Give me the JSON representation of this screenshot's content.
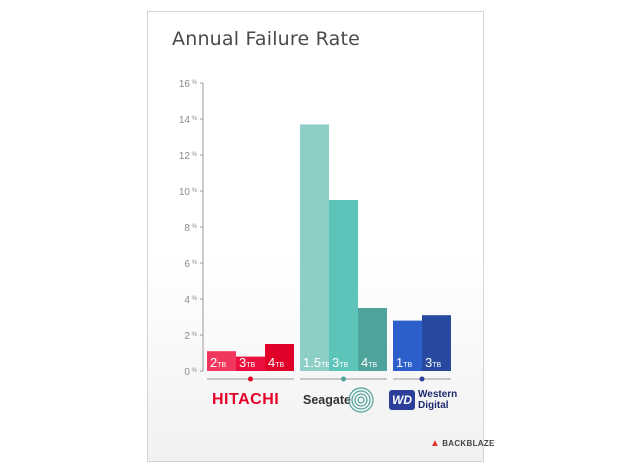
{
  "chart_data": {
    "type": "bar",
    "title": "Annual Failure Rate",
    "xlabel": "",
    "ylabel": "",
    "ylim": [
      0,
      16
    ],
    "ytick_labels": [
      "0 %",
      "2 %",
      "4 %",
      "6 %",
      "8 %",
      "10 %",
      "12 %",
      "14 %",
      "16 %"
    ],
    "ytick_values": [
      0,
      2,
      4,
      6,
      8,
      10,
      12,
      14,
      16
    ],
    "grid": false,
    "groups": [
      {
        "name": "HITACHI",
        "bars": [
          {
            "label_num": "2",
            "label_unit": "TB",
            "value": 1.1,
            "color": "#f2375e"
          },
          {
            "label_num": "3",
            "label_unit": "TB",
            "value": 0.8,
            "color": "#ea0f3e"
          },
          {
            "label_num": "4",
            "label_unit": "TB",
            "value": 1.5,
            "color": "#e00028"
          }
        ]
      },
      {
        "name": "Seagate",
        "bars": [
          {
            "label_num": "1.5",
            "label_unit": "TB",
            "value": 13.7,
            "color": "#8dcfc7"
          },
          {
            "label_num": "3",
            "label_unit": "TB",
            "value": 9.5,
            "color": "#5dc4ba"
          },
          {
            "label_num": "4",
            "label_unit": "TB",
            "value": 3.5,
            "color": "#4ea39a"
          }
        ]
      },
      {
        "name": "Western Digital",
        "bars": [
          {
            "label_num": "1",
            "label_unit": "TB",
            "value": 2.8,
            "color": "#2c5fc9"
          },
          {
            "label_num": "3",
            "label_unit": "TB",
            "value": 3.1,
            "color": "#2749a0"
          }
        ]
      }
    ]
  },
  "logos": {
    "hitachi": "HITACHI",
    "seagate": "Seagate",
    "wd_badge": "WD",
    "wd_line1": "Western",
    "wd_line2": "Digital",
    "backblaze": "BACKBLAZE"
  },
  "colors": {
    "axis": "#9a9a9a",
    "tick_text": "#8a8a8a",
    "hitachi_dot": "#e60028",
    "seagate_dot": "#4ea39a",
    "wd_dot": "#2a3e9a"
  }
}
